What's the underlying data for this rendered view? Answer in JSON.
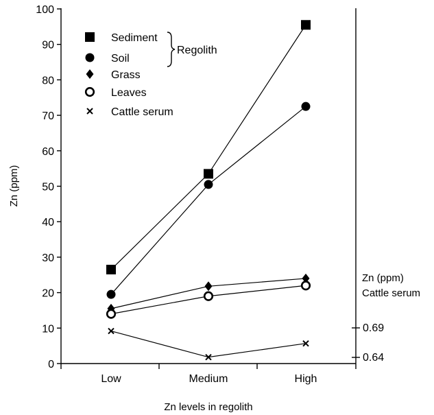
{
  "chart_data": {
    "type": "line",
    "categories": [
      "Low",
      "Medium",
      "High"
    ],
    "xlabel": "Zn levels in regolith",
    "ylabel": "Zn (ppm)",
    "ylim": [
      0,
      100
    ],
    "yticks": [
      0,
      10,
      20,
      30,
      40,
      50,
      60,
      70,
      80,
      90,
      100
    ],
    "grid": false,
    "legend_position": "top-left",
    "legend_group_label": "Regolith",
    "series": [
      {
        "name": "Sediment",
        "marker": "square",
        "values": [
          26.5,
          53.5,
          95.5
        ]
      },
      {
        "name": "Soil",
        "marker": "filled-circle",
        "values": [
          19.5,
          50.5,
          72.5
        ]
      },
      {
        "name": "Grass",
        "marker": "diamond",
        "values": [
          15.5,
          21.8,
          24.0
        ]
      },
      {
        "name": "Leaves",
        "marker": "open-circle",
        "values": [
          14.0,
          19.0,
          22.0
        ]
      },
      {
        "name": "Cattle serum",
        "marker": "x",
        "axis": "right",
        "values": [
          0.6847,
          0.6404,
          0.6636
        ]
      }
    ],
    "secondary_axis": {
      "label_line1": "Zn (ppm)",
      "label_line2": "Cattle serum",
      "ticks": [
        {
          "value": 0.69,
          "label": "0.69"
        },
        {
          "value": 0.64,
          "label": "0.64"
        }
      ]
    }
  }
}
